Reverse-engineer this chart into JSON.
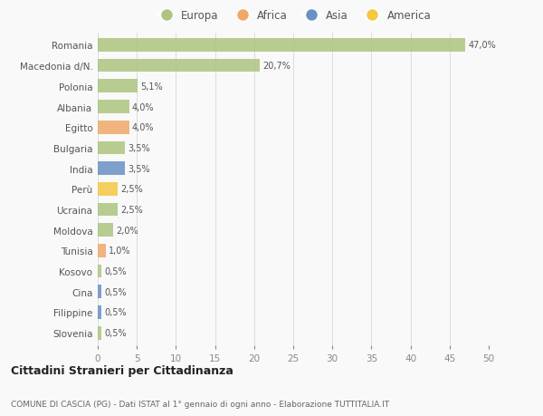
{
  "categories": [
    "Romania",
    "Macedonia d/N.",
    "Polonia",
    "Albania",
    "Egitto",
    "Bulgaria",
    "India",
    "Perù",
    "Ucraina",
    "Moldova",
    "Tunisia",
    "Kosovo",
    "Cina",
    "Filippine",
    "Slovenia"
  ],
  "values": [
    47.0,
    20.7,
    5.1,
    4.0,
    4.0,
    3.5,
    3.5,
    2.5,
    2.5,
    2.0,
    1.0,
    0.5,
    0.5,
    0.5,
    0.5
  ],
  "labels": [
    "47,0%",
    "20,7%",
    "5,1%",
    "4,0%",
    "4,0%",
    "3,5%",
    "3,5%",
    "2,5%",
    "2,5%",
    "2,0%",
    "1,0%",
    "0,5%",
    "0,5%",
    "0,5%",
    "0,5%"
  ],
  "colors": [
    "#adc47f",
    "#adc47f",
    "#adc47f",
    "#adc47f",
    "#f0a868",
    "#adc47f",
    "#6a90c4",
    "#f5c842",
    "#adc47f",
    "#adc47f",
    "#f0a868",
    "#adc47f",
    "#6a90c4",
    "#6a90c4",
    "#adc47f"
  ],
  "continent_colors": {
    "Europa": "#adc47f",
    "Africa": "#f0a868",
    "Asia": "#6a90c4",
    "America": "#f5c842"
  },
  "legend_labels": [
    "Europa",
    "Africa",
    "Asia",
    "America"
  ],
  "xlim": [
    0,
    50
  ],
  "xticks": [
    0,
    5,
    10,
    15,
    20,
    25,
    30,
    35,
    40,
    45,
    50
  ],
  "title": "Cittadini Stranieri per Cittadinanza",
  "subtitle": "COMUNE DI CASCIA (PG) - Dati ISTAT al 1° gennaio di ogni anno - Elaborazione TUTTITALIA.IT",
  "bg_color": "#f9f9f9",
  "grid_color": "#dddddd",
  "bar_height": 0.65
}
